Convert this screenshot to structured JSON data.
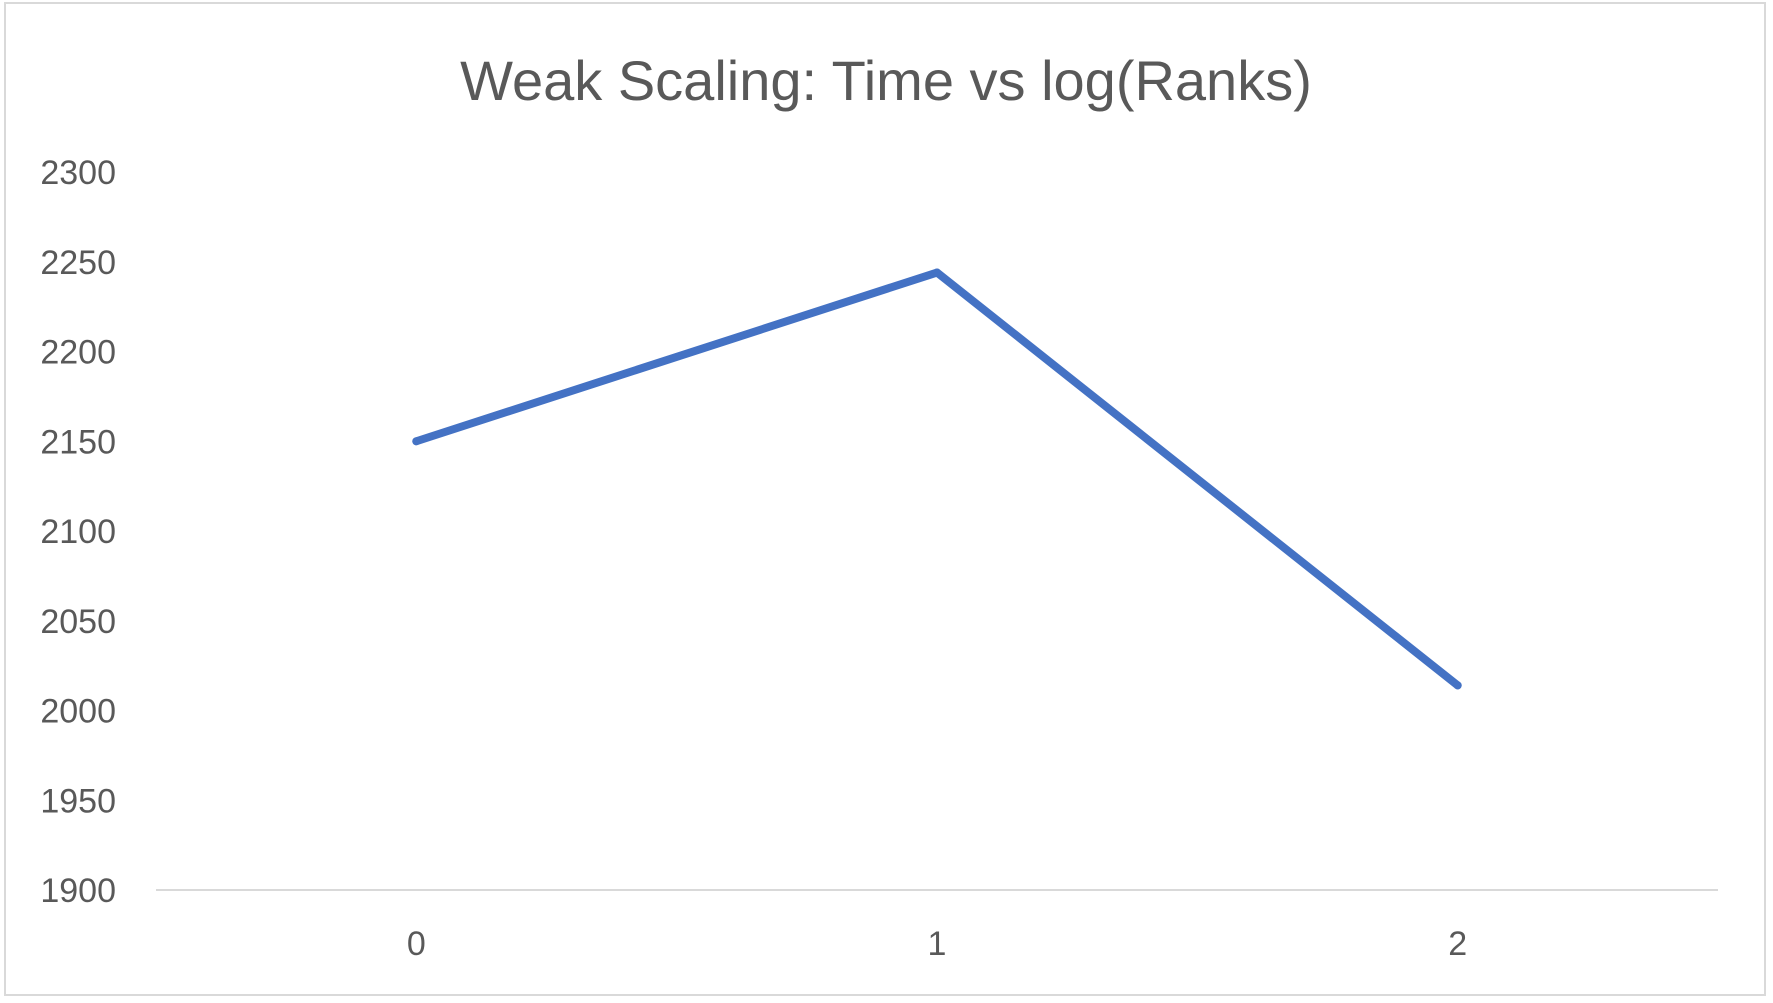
{
  "chart_data": {
    "type": "line",
    "title": "Weak Scaling: Time vs log(Ranks)",
    "xlabel": "",
    "ylabel": "",
    "categories": [
      "0",
      "1",
      "2"
    ],
    "series": [
      {
        "values": [
          2150,
          2244,
          2014
        ],
        "color": "#4472c4"
      }
    ],
    "ylim": [
      1900,
      2300
    ],
    "yticks": [
      1900,
      1950,
      2000,
      2050,
      2100,
      2150,
      2200,
      2250,
      2300
    ],
    "grid": false,
    "legend": "none",
    "axis_color": "#d9d9d9",
    "text_color": "#595959"
  }
}
